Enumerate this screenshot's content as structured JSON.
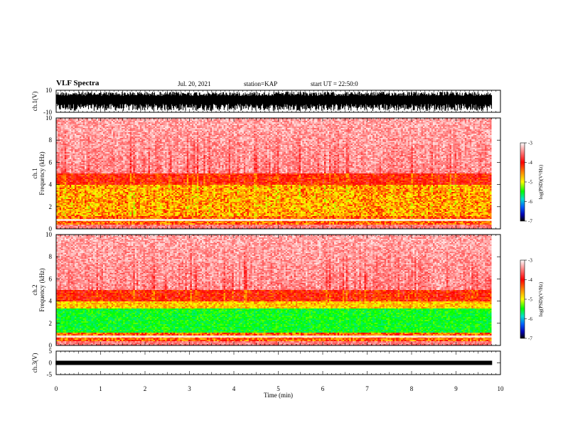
{
  "header": {
    "title": "VLF Spectra",
    "date": "Jul. 20, 2021",
    "station": "station=KAP",
    "start": "start UT =  22:50:0"
  },
  "colors": {
    "colormap": [
      "#ffffff",
      "#ff8080",
      "#ff0000",
      "#ff8c00",
      "#ffff00",
      "#00ff00",
      "#00e0d0",
      "#0060ff",
      "#0000b0",
      "#000000"
    ]
  },
  "chart_data": [
    {
      "type": "line",
      "id": "ch1-waveform",
      "ylabel": "ch.1(V)",
      "ylim": [
        -10,
        10
      ],
      "y_tick_labels": [
        "10",
        "-10"
      ],
      "xlim": [
        0,
        10
      ],
      "description_values": {
        "min": -10,
        "max": 10
      }
    },
    {
      "type": "heatmap",
      "id": "ch1-spectrogram",
      "ylabel": "ch.1\nFrequency (kHz)",
      "ylim": [
        0,
        10
      ],
      "y_tick_labels": [
        "0",
        "2",
        "4",
        "6",
        "8",
        "10"
      ],
      "xlim": [
        0,
        9.8
      ],
      "colorbar": {
        "label": "log(PSD)(V²/Hz)",
        "range": [
          -7,
          -3
        ],
        "tick_labels": [
          "-3",
          "-4",
          "-5",
          "-6",
          "-7"
        ]
      }
    },
    {
      "type": "heatmap",
      "id": "ch2-spectrogram",
      "ylabel": "ch.2\nFrequency (kHz)",
      "ylim": [
        0,
        10
      ],
      "y_tick_labels": [
        "0",
        "2",
        "4",
        "6",
        "8",
        "10"
      ],
      "xlim": [
        0,
        9.8
      ],
      "colorbar": {
        "label": "log(PSD)(V²/Hz)",
        "range": [
          -7,
          -3
        ],
        "tick_labels": [
          "-3",
          "-4",
          "-5",
          "-6",
          "-7"
        ]
      }
    },
    {
      "type": "line",
      "id": "ch3-waveform",
      "ylabel": "ch.3(V)",
      "ylim": [
        -5,
        5
      ],
      "y_tick_labels": [
        "5",
        "0",
        "-5"
      ],
      "xlim": [
        0,
        10
      ],
      "xlabel": "Time (min)",
      "x_tick_labels": [
        "0",
        "1",
        "2",
        "3",
        "4",
        "5",
        "6",
        "7",
        "8",
        "9",
        "10"
      ]
    }
  ]
}
